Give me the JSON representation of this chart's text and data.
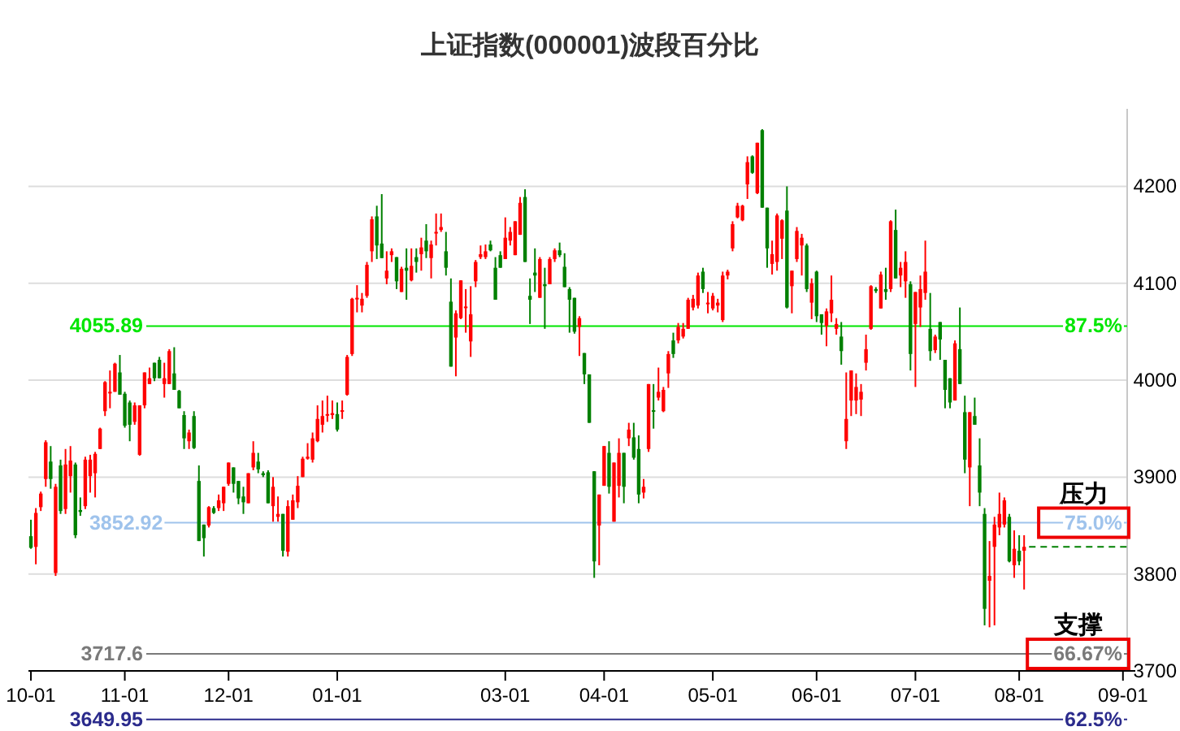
{
  "chart_data": {
    "type": "candlestick",
    "title": "上证指数(000001)波段百分比",
    "categories": [
      "10-01",
      null,
      null,
      null,
      null,
      null,
      null,
      null,
      null,
      null,
      null,
      null,
      null,
      null,
      null,
      null,
      null,
      null,
      null,
      "11-01",
      null,
      null,
      null,
      null,
      null,
      null,
      null,
      null,
      null,
      null,
      null,
      null,
      null,
      null,
      null,
      null,
      null,
      null,
      null,
      null,
      "12-01",
      null,
      null,
      null,
      null,
      null,
      null,
      null,
      null,
      null,
      null,
      null,
      null,
      null,
      null,
      null,
      null,
      null,
      null,
      null,
      null,
      null,
      "01-01",
      null,
      null,
      null,
      null,
      null,
      null,
      null,
      null,
      null,
      null,
      null,
      null,
      null,
      null,
      null,
      null,
      null,
      null,
      null,
      null,
      null,
      null,
      null,
      null,
      null,
      null,
      null,
      null,
      null,
      null,
      null,
      null,
      null,
      "03-01",
      null,
      null,
      null,
      null,
      null,
      null,
      null,
      null,
      null,
      null,
      null,
      null,
      null,
      null,
      null,
      null,
      null,
      null,
      null,
      "04-01",
      null,
      null,
      null,
      null,
      null,
      null,
      null,
      null,
      null,
      null,
      null,
      null,
      null,
      null,
      null,
      null,
      null,
      null,
      null,
      null,
      null,
      "05-01",
      null,
      null,
      null,
      null,
      null,
      null,
      null,
      null,
      null,
      null,
      null,
      null,
      null,
      null,
      null,
      null,
      null,
      null,
      null,
      null,
      "06-01",
      null,
      null,
      null,
      null,
      null,
      null,
      null,
      null,
      null,
      null,
      null,
      null,
      null,
      null,
      null,
      null,
      null,
      null,
      null,
      "07-01",
      null,
      null,
      null,
      null,
      null,
      null,
      null,
      null,
      null,
      null,
      null,
      null,
      null,
      null,
      null,
      null,
      null,
      null,
      null,
      null,
      "08-01",
      null,
      null,
      null,
      null,
      null,
      null,
      null,
      null,
      null,
      null,
      null,
      null,
      null,
      null,
      null,
      null,
      null,
      null,
      null,
      null,
      "09-01",
      null,
      null
    ],
    "ohlc": [
      [
        3839,
        3856,
        3826,
        3827
      ],
      [
        3828,
        3868,
        3810,
        3863
      ],
      [
        3869,
        3885,
        3865,
        3883
      ],
      [
        3898,
        3938,
        3890,
        3936
      ],
      [
        3916,
        3932,
        3888,
        3898
      ],
      [
        3801,
        3893,
        3798,
        3890
      ],
      [
        3912,
        3918,
        3862,
        3865
      ],
      [
        3867,
        3929,
        3862,
        3913
      ],
      [
        3901,
        3932,
        3884,
        3917
      ],
      [
        3913,
        3915,
        3837,
        3840
      ],
      [
        3866,
        3879,
        3860,
        3864
      ],
      [
        3870,
        3921,
        3867,
        3918
      ],
      [
        3901,
        3923,
        3884,
        3918
      ],
      [
        3904,
        3926,
        3879,
        3924
      ],
      [
        3929,
        3951,
        3929,
        3950
      ],
      [
        3968,
        3999,
        3963,
        3998
      ],
      [
        3987,
        4010,
        3971,
        3988
      ],
      [
        3988,
        4018,
        3988,
        4017
      ],
      [
        4008,
        4026,
        3985,
        3985
      ],
      [
        3986,
        3988,
        3951,
        3953
      ],
      [
        3977,
        3979,
        3937,
        3954
      ],
      [
        3957,
        3977,
        3954,
        3974
      ],
      [
        3923,
        3974,
        3922,
        3974
      ],
      [
        3974,
        4008,
        3971,
        4008
      ],
      [
        3996,
        4013,
        3996,
        4002
      ],
      [
        4018,
        4018,
        3999,
        4002
      ],
      [
        4021,
        4024,
        4002,
        4002
      ],
      [
        3996,
        4018,
        3982,
        4002
      ],
      [
        3996,
        4032,
        3996,
        4030
      ],
      [
        4007,
        4034,
        3990,
        3990
      ],
      [
        3989,
        3990,
        3971,
        3971
      ],
      [
        3964,
        3968,
        3929,
        3940
      ],
      [
        3937,
        3949,
        3929,
        3946
      ],
      [
        3963,
        3968,
        3929,
        3930
      ],
      [
        3896,
        3912,
        3834,
        3834
      ],
      [
        3851,
        3851,
        3818,
        3837
      ],
      [
        3850,
        3870,
        3848,
        3869
      ],
      [
        3868,
        3870,
        3862,
        3863
      ],
      [
        3868,
        3882,
        3865,
        3876
      ],
      [
        3873,
        3890,
        3865,
        3890
      ],
      [
        3893,
        3915,
        3891,
        3915
      ],
      [
        3910,
        3910,
        3884,
        3893
      ],
      [
        3896,
        3896,
        3872,
        3878
      ],
      [
        3880,
        3890,
        3862,
        3874
      ],
      [
        3873,
        3904,
        3873,
        3904
      ],
      [
        3910,
        3937,
        3907,
        3925
      ],
      [
        3916,
        3925,
        3904,
        3908
      ],
      [
        3904,
        3906,
        3900,
        3902
      ],
      [
        3905,
        3907,
        3873,
        3873
      ],
      [
        3870,
        3900,
        3854,
        3890
      ],
      [
        3859,
        3880,
        3854,
        3862
      ],
      [
        3862,
        3862,
        3818,
        3824
      ],
      [
        3823,
        3876,
        3818,
        3870
      ],
      [
        3856,
        3882,
        3856,
        3876
      ],
      [
        3874,
        3901,
        3868,
        3891
      ],
      [
        3900,
        3921,
        3900,
        3919
      ],
      [
        3919,
        3935,
        3918,
        3921
      ],
      [
        3918,
        3946,
        3915,
        3940
      ],
      [
        3937,
        3974,
        3936,
        3960
      ],
      [
        3954,
        3979,
        3946,
        3963
      ],
      [
        3964,
        3984,
        3957,
        3965
      ],
      [
        3964,
        3979,
        3960,
        3966
      ],
      [
        3965,
        3977,
        3947,
        3949
      ],
      [
        3968,
        3979,
        3960,
        3969
      ],
      [
        3985,
        4026,
        3984,
        4024
      ],
      [
        4027,
        4085,
        4025,
        4084
      ],
      [
        4084,
        4098,
        4070,
        4085
      ],
      [
        4077,
        4090,
        4070,
        4084
      ],
      [
        4087,
        4122,
        4085,
        4119
      ],
      [
        4133,
        4169,
        4122,
        4166
      ],
      [
        4169,
        4180,
        4125,
        4139
      ],
      [
        4141,
        4192,
        4126,
        4126
      ],
      [
        4105,
        4133,
        4099,
        4113
      ],
      [
        4129,
        4136,
        4122,
        4133
      ],
      [
        4127,
        4127,
        4094,
        4102
      ],
      [
        4091,
        4117,
        4091,
        4115
      ],
      [
        4116,
        4136,
        4083,
        4113
      ],
      [
        4103,
        4136,
        4102,
        4118
      ],
      [
        4127,
        4136,
        4111,
        4122
      ],
      [
        4130,
        4147,
        4113,
        4137
      ],
      [
        4144,
        4161,
        4126,
        4133
      ],
      [
        4126,
        4144,
        4105,
        4140
      ],
      [
        4152,
        4172,
        4139,
        4153
      ],
      [
        4155,
        4172,
        4153,
        4158
      ],
      [
        4133,
        4153,
        4108,
        4116
      ],
      [
        4081,
        4105,
        4014,
        4014
      ],
      [
        4044,
        4072,
        4004,
        4069
      ],
      [
        4064,
        4103,
        4063,
        4103
      ],
      [
        4075,
        4094,
        4049,
        4076
      ],
      [
        4040,
        4097,
        4024,
        4068
      ],
      [
        4102,
        4124,
        4096,
        4122
      ],
      [
        4127,
        4139,
        4125,
        4130
      ],
      [
        4127,
        4140,
        4125,
        4133
      ],
      [
        4140,
        4144,
        4133,
        4134
      ],
      [
        4116,
        4127,
        4083,
        4083
      ],
      [
        4129,
        4133,
        4116,
        4116
      ],
      [
        4125,
        4168,
        4125,
        4147
      ],
      [
        4144,
        4158,
        4139,
        4153
      ],
      [
        4129,
        4164,
        4129,
        4164
      ],
      [
        4150,
        4189,
        4150,
        4183
      ],
      [
        4189,
        4197,
        4122,
        4122
      ],
      [
        4087,
        4105,
        4058,
        4083
      ],
      [
        4111,
        4136,
        4091,
        4108
      ],
      [
        4085,
        4127,
        4085,
        4125
      ],
      [
        4099,
        4116,
        4053,
        4097
      ],
      [
        4099,
        4127,
        4099,
        4125
      ],
      [
        4125,
        4136,
        4122,
        4134
      ],
      [
        4134,
        4142,
        4127,
        4129
      ],
      [
        4117,
        4131,
        4096,
        4096
      ],
      [
        4094,
        4096,
        4049,
        4083
      ],
      [
        4085,
        4085,
        4048,
        4050
      ],
      [
        4055,
        4066,
        4025,
        4064
      ],
      [
        4028,
        4028,
        3996,
        4006
      ],
      [
        4006,
        4006,
        3956,
        3956
      ],
      [
        3906,
        3906,
        3796,
        3813
      ],
      [
        3850,
        3882,
        3809,
        3882
      ],
      [
        3891,
        3932,
        3891,
        3932
      ],
      [
        3925,
        3937,
        3883,
        3890
      ],
      [
        3854,
        3915,
        3854,
        3915
      ],
      [
        3891,
        3940,
        3879,
        3925
      ],
      [
        3925,
        3925,
        3873,
        3890
      ],
      [
        3940,
        3956,
        3932,
        3949
      ],
      [
        3941,
        3956,
        3918,
        3920
      ],
      [
        3929,
        3943,
        3873,
        3882
      ],
      [
        3884,
        3898,
        3878,
        3890
      ],
      [
        3929,
        3996,
        3926,
        3996
      ],
      [
        3969,
        3996,
        3950,
        3968
      ],
      [
        3982,
        4013,
        3979,
        3988
      ],
      [
        3968,
        3993,
        3967,
        3990
      ],
      [
        4007,
        4030,
        3992,
        4027
      ],
      [
        4041,
        4049,
        4023,
        4027
      ],
      [
        4041,
        4059,
        4038,
        4055
      ],
      [
        4045,
        4059,
        4043,
        4053
      ],
      [
        4053,
        4085,
        4053,
        4083
      ],
      [
        4075,
        4088,
        4072,
        4084
      ],
      [
        4077,
        4111,
        4074,
        4108
      ],
      [
        4112,
        4116,
        4090,
        4094
      ],
      [
        4079,
        4091,
        4069,
        4080
      ],
      [
        4074,
        4090,
        4072,
        4087
      ],
      [
        4077,
        4084,
        4070,
        4080
      ],
      [
        4062,
        4112,
        4060,
        4108
      ],
      [
        4108,
        4114,
        4104,
        4112
      ],
      [
        4136,
        4164,
        4133,
        4161
      ],
      [
        4168,
        4183,
        4167,
        4180
      ],
      [
        4165,
        4181,
        4164,
        4180
      ],
      [
        4202,
        4231,
        4187,
        4225
      ],
      [
        4231,
        4232,
        4213,
        4214
      ],
      [
        4193,
        4245,
        4192,
        4245
      ],
      [
        4258,
        4259,
        4178,
        4178
      ],
      [
        4178,
        4178,
        4116,
        4136
      ],
      [
        4120,
        4144,
        4109,
        4130
      ],
      [
        4122,
        4172,
        4113,
        4170
      ],
      [
        4146,
        4166,
        4125,
        4165
      ],
      [
        4175,
        4200,
        4074,
        4075
      ],
      [
        4097,
        4113,
        4069,
        4113
      ],
      [
        4125,
        4158,
        4122,
        4154
      ],
      [
        4139,
        4151,
        4108,
        4147
      ],
      [
        4139,
        4141,
        4091,
        4094
      ],
      [
        4080,
        4105,
        4063,
        4100
      ],
      [
        4112,
        4113,
        4060,
        4066
      ],
      [
        4068,
        4068,
        4047,
        4059
      ],
      [
        4056,
        4074,
        4035,
        4071
      ],
      [
        4069,
        4108,
        4060,
        4083
      ],
      [
        4053,
        4064,
        4047,
        4058
      ],
      [
        4045,
        4060,
        4016,
        4030
      ],
      [
        3937,
        4008,
        3929,
        3960
      ],
      [
        3979,
        4010,
        3963,
        4010
      ],
      [
        3979,
        4007,
        3965,
        3993
      ],
      [
        3980,
        3996,
        3963,
        3988
      ],
      [
        4018,
        4047,
        4010,
        4032
      ],
      [
        4053,
        4098,
        4052,
        4097
      ],
      [
        4094,
        4096,
        4090,
        4092
      ],
      [
        4074,
        4112,
        4074,
        4109
      ],
      [
        4094,
        4116,
        4083,
        4091
      ],
      [
        4094,
        4165,
        4091,
        4164
      ],
      [
        4155,
        4176,
        4105,
        4105
      ],
      [
        4108,
        4122,
        4096,
        4116
      ],
      [
        4102,
        4133,
        4085,
        4122
      ],
      [
        4099,
        4102,
        4010,
        4027
      ],
      [
        4058,
        4091,
        3993,
        4091
      ],
      [
        4075,
        4108,
        4055,
        4094
      ],
      [
        4090,
        4144,
        4083,
        4112
      ],
      [
        4053,
        4090,
        4020,
        4030
      ],
      [
        4031,
        4047,
        4028,
        4045
      ],
      [
        4060,
        4060,
        4021,
        4042
      ],
      [
        4021,
        4021,
        3971,
        3990
      ],
      [
        4002,
        4002,
        3971,
        3977
      ],
      [
        3979,
        4041,
        3979,
        4038
      ],
      [
        4032,
        4075,
        3996,
        3996
      ],
      [
        3967,
        3984,
        3904,
        3918
      ],
      [
        3910,
        3967,
        3870,
        3967
      ],
      [
        3963,
        3982,
        3954,
        3954
      ],
      [
        3912,
        3940,
        3870,
        3884
      ],
      [
        3862,
        3868,
        3747,
        3764
      ],
      [
        3793,
        3834,
        3745,
        3798
      ],
      [
        3828,
        3859,
        3747,
        3851
      ],
      [
        3848,
        3884,
        3840,
        3862
      ],
      [
        3851,
        3879,
        3848,
        3876
      ],
      [
        3859,
        3862,
        3812,
        3813
      ],
      [
        3809,
        3845,
        3796,
        3826
      ],
      [
        3824,
        3840,
        3809,
        3813
      ],
      [
        3824,
        3840,
        3784,
        3828
      ],
      null,
      null,
      null,
      null,
      null,
      null,
      null,
      null,
      null,
      null,
      null,
      null,
      null,
      null,
      null,
      null,
      null,
      null,
      null,
      null,
      null,
      null
    ],
    "colors": [
      "#008000",
      "#ff0000",
      "#ff0000",
      "#ff0000",
      "#008000",
      "#ff0000",
      "#008000",
      "#ff0000",
      "#ff0000",
      "#008000",
      "#008000",
      "#ff0000",
      "#ff0000",
      "#ff0000",
      "#ff0000",
      "#ff0000",
      "#ff0000",
      "#ff0000",
      "#008000",
      "#008000",
      "#008000",
      "#ff0000",
      "#ff0000",
      "#ff0000",
      "#ff0000",
      "#008000",
      "#008000",
      "#ff0000",
      "#ff0000",
      "#008000",
      "#008000",
      "#008000",
      "#ff0000",
      "#008000",
      "#008000",
      "#008000",
      "#ff0000",
      "#008000",
      "#ff0000",
      "#ff0000",
      "#ff0000",
      "#008000",
      "#008000",
      "#008000",
      "#ff0000",
      "#ff0000",
      "#008000",
      "#008000",
      "#008000",
      "#ff0000",
      "#ff0000",
      "#008000",
      "#ff0000",
      "#ff0000",
      "#ff0000",
      "#ff0000",
      "#ff0000",
      "#ff0000",
      "#ff0000",
      "#ff0000",
      "#ff0000",
      "#ff0000",
      "#008000",
      "#ff0000",
      "#ff0000",
      "#ff0000",
      "#ff0000",
      "#ff0000",
      "#ff0000",
      "#ff0000",
      "#008000",
      "#008000",
      "#ff0000",
      "#ff0000",
      "#008000",
      "#ff0000",
      "#008000",
      "#ff0000",
      "#008000",
      "#ff0000",
      "#008000",
      "#ff0000",
      "#ff0000",
      "#ff0000",
      "#008000",
      "#008000",
      "#ff0000",
      "#ff0000",
      "#ff0000",
      "#ff0000",
      "#ff0000",
      "#ff0000",
      "#ff0000",
      "#008000",
      "#008000",
      "#008000",
      "#ff0000",
      "#ff0000",
      "#ff0000",
      "#ff0000",
      "#008000",
      "#008000",
      "#008000",
      "#ff0000",
      "#008000",
      "#ff0000",
      "#ff0000",
      "#008000",
      "#008000",
      "#008000",
      "#008000",
      "#ff0000",
      "#008000",
      "#008000",
      "#008000",
      "#ff0000",
      "#ff0000",
      "#008000",
      "#ff0000",
      "#ff0000",
      "#008000",
      "#ff0000",
      "#008000",
      "#008000",
      "#ff0000",
      "#ff0000",
      "#008000",
      "#ff0000",
      "#ff0000",
      "#ff0000",
      "#008000",
      "#ff0000",
      "#ff0000",
      "#ff0000",
      "#ff0000",
      "#ff0000",
      "#008000",
      "#ff0000",
      "#ff0000",
      "#ff0000",
      "#ff0000",
      "#ff0000",
      "#ff0000",
      "#ff0000",
      "#ff0000",
      "#ff0000",
      "#008000",
      "#ff0000",
      "#008000",
      "#008000",
      "#ff0000",
      "#ff0000",
      "#ff0000",
      "#008000",
      "#ff0000",
      "#ff0000",
      "#ff0000",
      "#008000",
      "#ff0000",
      "#008000",
      "#008000",
      "#ff0000",
      "#ff0000",
      "#ff0000",
      "#008000",
      "#ff0000",
      "#ff0000",
      "#ff0000",
      "#ff0000",
      "#ff0000",
      "#ff0000",
      "#008000",
      "#ff0000",
      "#008000",
      "#ff0000",
      "#008000",
      "#ff0000",
      "#ff0000",
      "#008000",
      "#ff0000",
      "#ff0000",
      "#ff0000",
      "#008000",
      "#ff0000",
      "#008000",
      "#008000",
      "#008000",
      "#ff0000",
      "#008000",
      "#008000",
      "#ff0000",
      "#008000",
      "#008000",
      "#008000",
      "#ff0000",
      "#ff0000",
      "#ff0000",
      "#ff0000",
      "#008000",
      "#ff0000",
      "#008000",
      "#ff0000",
      null,
      null,
      null,
      null,
      null,
      null,
      null,
      null,
      null,
      null,
      null,
      null,
      null,
      null,
      null,
      null,
      null,
      null,
      null,
      null,
      null,
      null
    ],
    "ylim": [
      3700,
      4280
    ],
    "yticks": [
      3700,
      3800,
      3900,
      4000,
      4100,
      4200
    ],
    "grid": "y",
    "ref_lines": [
      {
        "axis": "y",
        "value": 4055.89,
        "label": "4055.89",
        "color": "#00e600"
      },
      {
        "axis": "y",
        "value": 3852.92,
        "label": "3852.92",
        "color": "#9fc3ec"
      },
      {
        "axis": "y",
        "value": 3717.6,
        "label": "3717.6",
        "color": "#7a7a7a"
      },
      {
        "axis": "y",
        "value": 3649.95,
        "label": "3649.95",
        "color": "#2b2b8c"
      },
      {
        "axis": "y",
        "value": 3828,
        "color": "#008000",
        "line_style": "dashed"
      }
    ],
    "annotations": [
      {
        "text": "87.5%",
        "y": 4055.89
      },
      {
        "text": "75.0%",
        "y": 3852.92
      },
      {
        "text": "压力",
        "y": 3852.92
      },
      {
        "text": "66.67%",
        "y": 3717.6
      },
      {
        "text": "支撑",
        "y": 3717.6
      },
      {
        "text": "62.5%",
        "y": 3649.95
      }
    ]
  }
}
